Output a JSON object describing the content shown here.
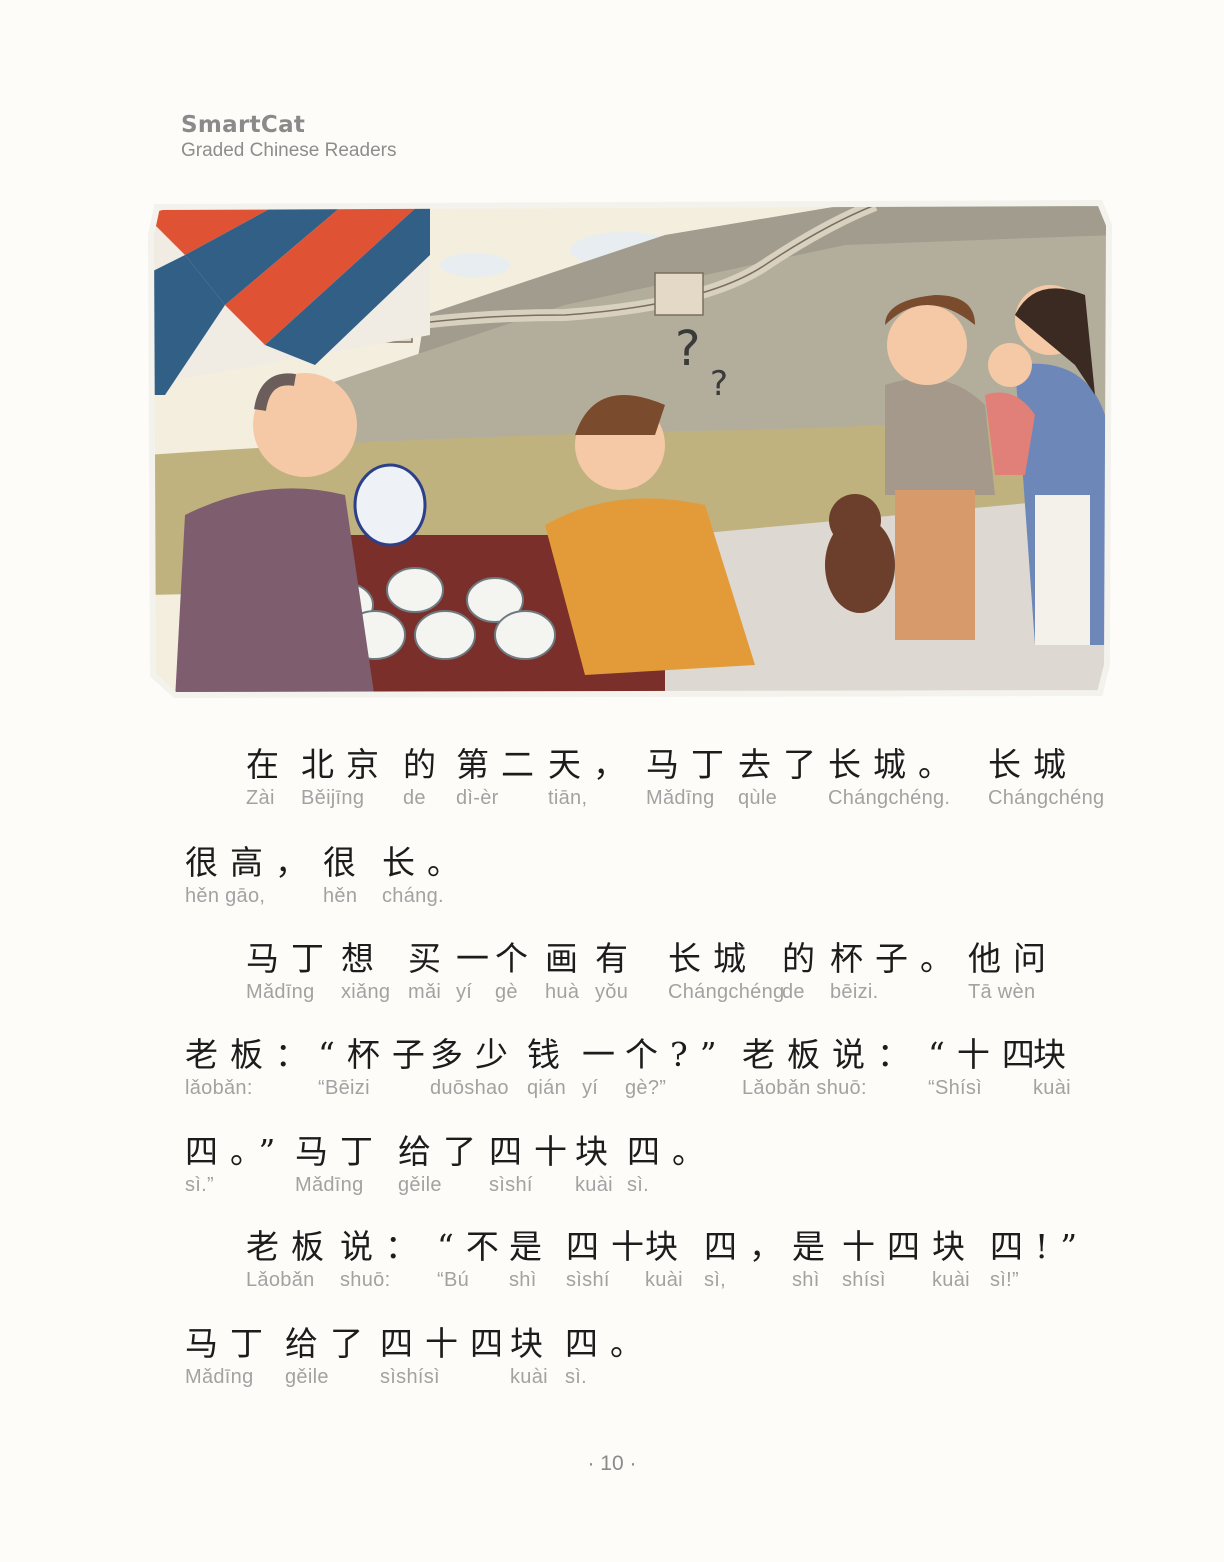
{
  "header": {
    "brand": "SmartCat",
    "series": "Graded Chinese Readers"
  },
  "story": {
    "lines": [
      {
        "words": [
          {
            "hanzi": "在",
            "pinyin": "Zài"
          },
          {
            "hanzi": "北京",
            "pinyin": "Běijīng"
          },
          {
            "hanzi": "的",
            "pinyin": "de"
          },
          {
            "hanzi": "第二",
            "pinyin": "dì-èr"
          },
          {
            "hanzi": "天，",
            "pinyin": "tiān,"
          },
          {
            "hanzi": "马丁",
            "pinyin": "Mǎdīng"
          },
          {
            "hanzi": "去了",
            "pinyin": "qùle"
          },
          {
            "hanzi": "长城。",
            "pinyin": "Chángchéng."
          },
          {
            "hanzi": "长城",
            "pinyin": "Chángchéng"
          }
        ]
      },
      {
        "words": [
          {
            "hanzi": "很高，",
            "pinyin": "hěn gāo,"
          },
          {
            "hanzi": "很",
            "pinyin": "hěn"
          },
          {
            "hanzi": "长。",
            "pinyin": "cháng."
          }
        ]
      },
      {
        "words": [
          {
            "hanzi": "马丁",
            "pinyin": "Mǎdīng"
          },
          {
            "hanzi": "想",
            "pinyin": "xiǎng"
          },
          {
            "hanzi": "买",
            "pinyin": "mǎi"
          },
          {
            "hanzi": "一",
            "pinyin": "yí"
          },
          {
            "hanzi": "个",
            "pinyin": "gè"
          },
          {
            "hanzi": "画",
            "pinyin": "huà"
          },
          {
            "hanzi": "有",
            "pinyin": "yǒu"
          },
          {
            "hanzi": "长城",
            "pinyin": "Chángchéng"
          },
          {
            "hanzi": "的",
            "pinyin": "de"
          },
          {
            "hanzi": "杯子。",
            "pinyin": "bēizi."
          },
          {
            "hanzi": "他问",
            "pinyin": "Tā wèn"
          }
        ]
      },
      {
        "words": [
          {
            "hanzi": "老板：",
            "pinyin": "lǎobǎn:"
          },
          {
            "hanzi": "“杯子",
            "pinyin": "“Bēizi"
          },
          {
            "hanzi": "多少",
            "pinyin": "duōshao"
          },
          {
            "hanzi": "钱",
            "pinyin": "qián"
          },
          {
            "hanzi": "一",
            "pinyin": "yí"
          },
          {
            "hanzi": "个?”",
            "pinyin": "gè?”"
          },
          {
            "hanzi": "老板说：",
            "pinyin": "Lǎobǎn shuō:"
          },
          {
            "hanzi": "“十四",
            "pinyin": "“Shísì"
          },
          {
            "hanzi": "块",
            "pinyin": "kuài"
          }
        ]
      },
      {
        "words": [
          {
            "hanzi": "四。”",
            "pinyin": "sì.”"
          },
          {
            "hanzi": "马丁",
            "pinyin": "Mǎdīng"
          },
          {
            "hanzi": "给了",
            "pinyin": "gěile"
          },
          {
            "hanzi": "四十",
            "pinyin": "sìshí"
          },
          {
            "hanzi": "块",
            "pinyin": "kuài"
          },
          {
            "hanzi": "四。",
            "pinyin": "sì."
          }
        ]
      },
      {
        "words": [
          {
            "hanzi": "老板",
            "pinyin": "Lǎobǎn"
          },
          {
            "hanzi": "说：",
            "pinyin": "shuō:"
          },
          {
            "hanzi": "“不",
            "pinyin": "“Bú"
          },
          {
            "hanzi": "是",
            "pinyin": "shì"
          },
          {
            "hanzi": "四十",
            "pinyin": "sìshí"
          },
          {
            "hanzi": "块",
            "pinyin": "kuài"
          },
          {
            "hanzi": "四，",
            "pinyin": "sì,"
          },
          {
            "hanzi": "是",
            "pinyin": "shì"
          },
          {
            "hanzi": "十四",
            "pinyin": "shísì"
          },
          {
            "hanzi": "块",
            "pinyin": "kuài"
          },
          {
            "hanzi": "四!”",
            "pinyin": "sì!”"
          }
        ]
      },
      {
        "words": [
          {
            "hanzi": "马丁",
            "pinyin": "Mǎdīng"
          },
          {
            "hanzi": "给了",
            "pinyin": "gěile"
          },
          {
            "hanzi": "四十四",
            "pinyin": "sìshísì"
          },
          {
            "hanzi": "块",
            "pinyin": "kuài"
          },
          {
            "hanzi": "四。",
            "pinyin": "sì."
          }
        ]
      }
    ]
  },
  "footer": {
    "page_number": "· 10 ·"
  }
}
